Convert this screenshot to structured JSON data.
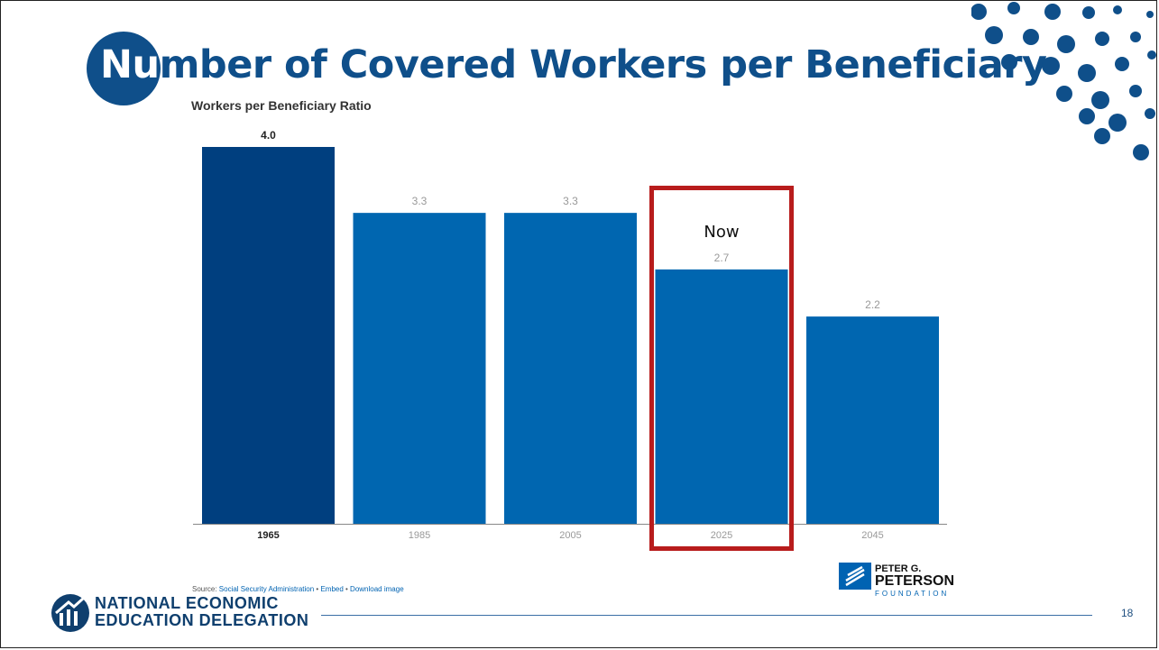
{
  "slide": {
    "title_prefix": "Nu",
    "title_rest": "mber of Covered Workers per Beneficiary",
    "page_number": "18",
    "footer_org_line1": "NATIONAL ECONOMIC",
    "footer_org_line2": "EDUCATION DELEGATION"
  },
  "annotation": {
    "now_label": "Now"
  },
  "source": {
    "prefix": "Source: ",
    "source_link": "Social Security Administration",
    "sep1": " • ",
    "embed": "Embed",
    "sep2": " • ",
    "download": "Download image"
  },
  "branding": {
    "pgf_line1": "PETER G.",
    "pgf_line2": "PETERSON",
    "pgf_line3": "FOUNDATION"
  },
  "colors": {
    "dark_bar": "#003f7f",
    "bar": "#0066b0",
    "highlight_box": "#b81c1c",
    "title": "#0f4f8a"
  },
  "chart_data": {
    "type": "bar",
    "title": "Workers per Beneficiary Ratio",
    "categories": [
      "1965",
      "1985",
      "2005",
      "2025",
      "2045"
    ],
    "values": [
      4.0,
      3.3,
      3.3,
      2.7,
      2.2
    ],
    "value_labels": [
      "4.0",
      "3.3",
      "3.3",
      "2.7",
      "2.2"
    ],
    "ylim": [
      0,
      4.0
    ],
    "grid": false,
    "highlighted_category": "2025"
  }
}
